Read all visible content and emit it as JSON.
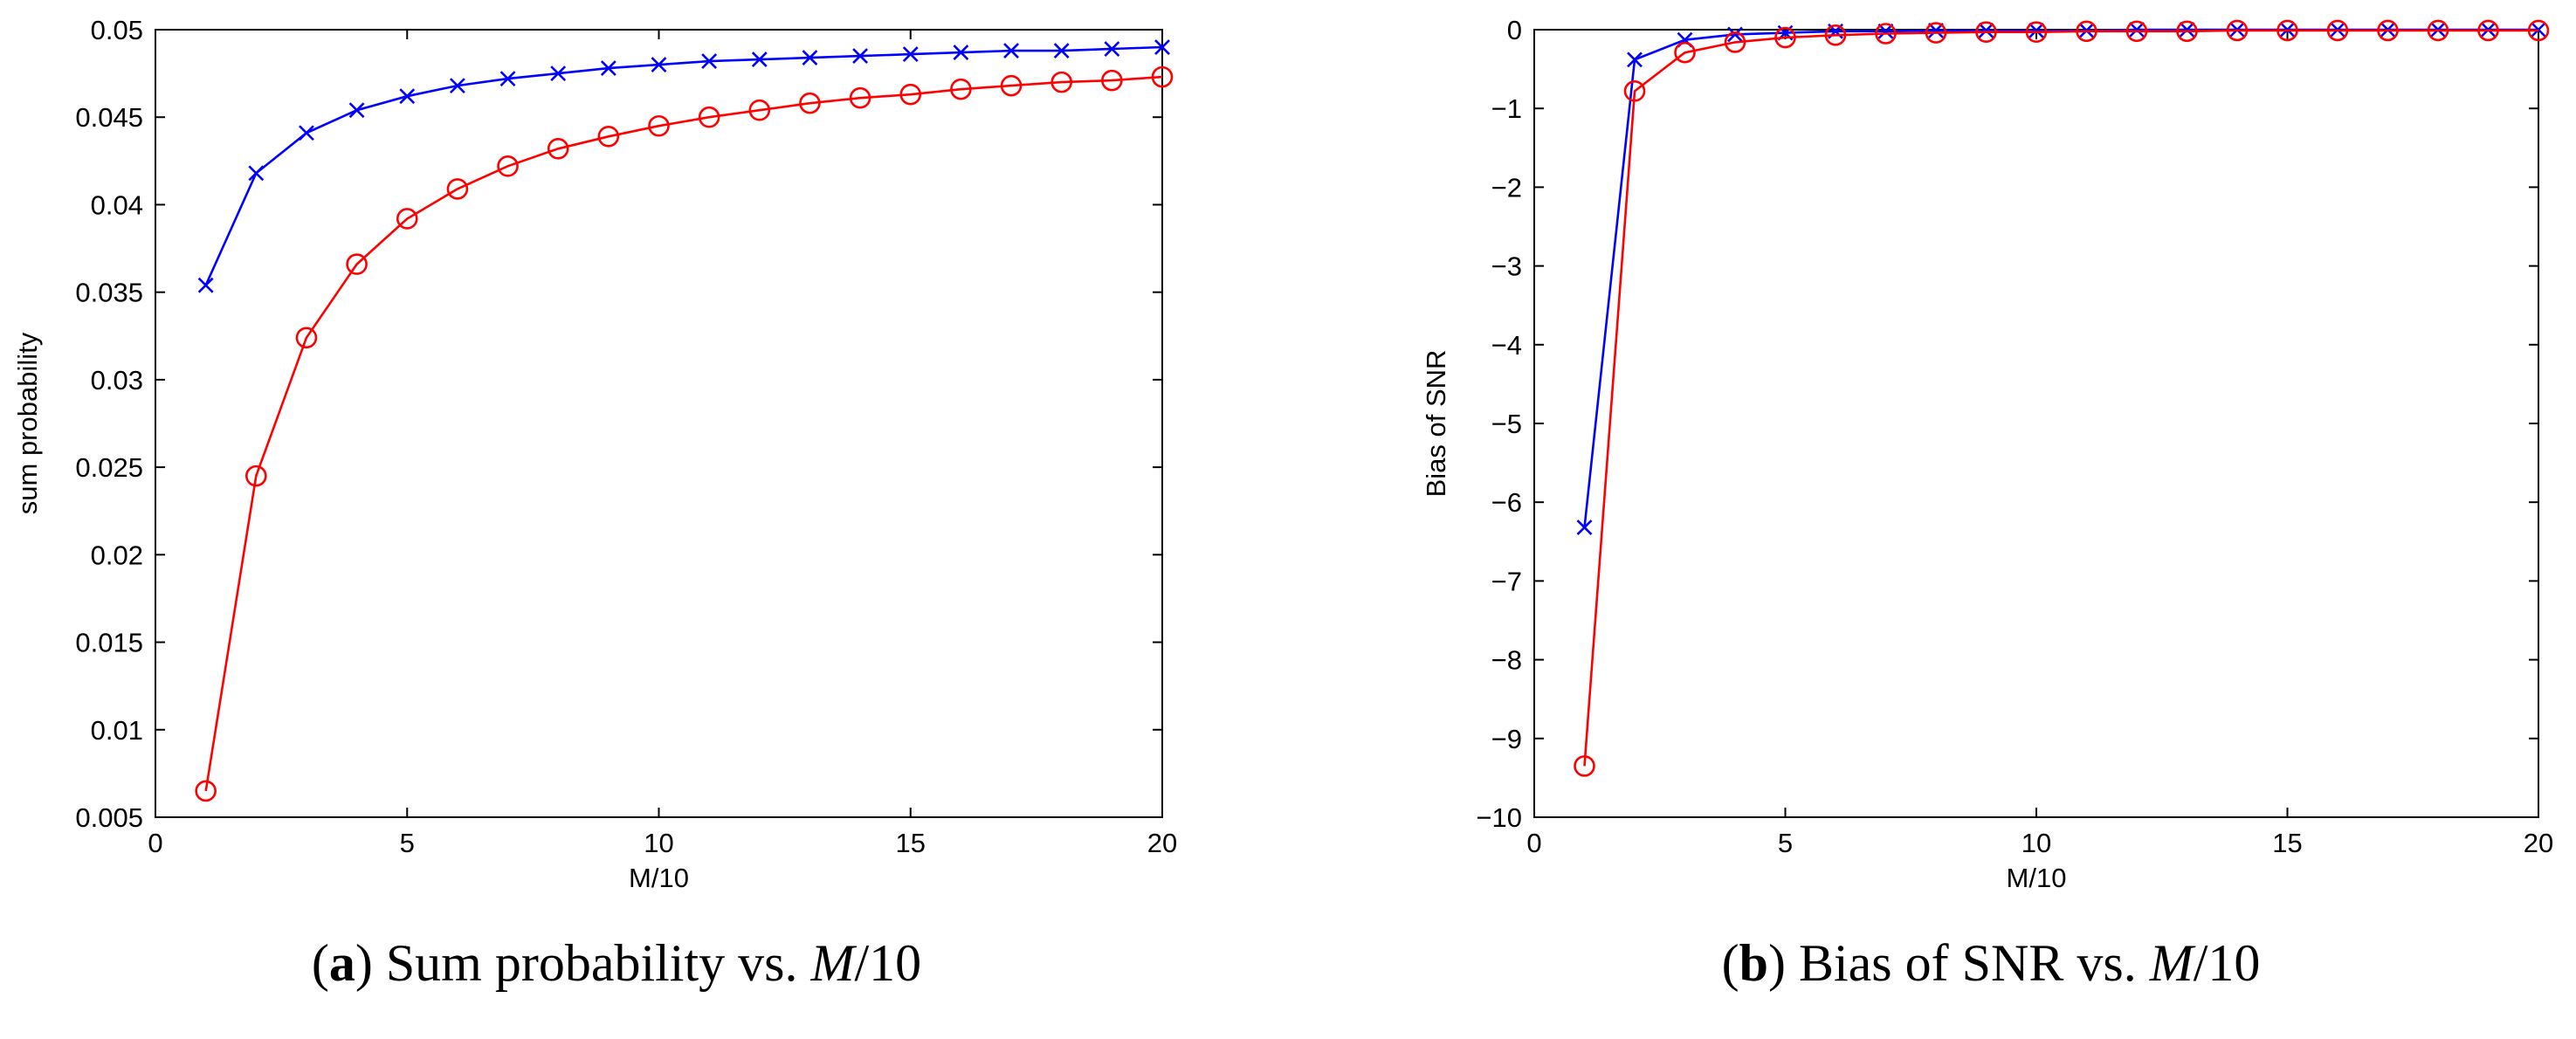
{
  "chart_data": [
    {
      "type": "line",
      "panel_label": "a",
      "caption_text": "Sum probability vs.",
      "caption_var": "M",
      "caption_suffix": "/10",
      "xlabel": "M/10",
      "ylabel": "sum probability",
      "xlim": [
        0,
        20
      ],
      "ylim": [
        0.005,
        0.05
      ],
      "xticks": [
        0,
        5,
        10,
        15,
        20
      ],
      "xtick_labels": [
        "0",
        "5",
        "10",
        "15",
        "20"
      ],
      "yticks": [
        0.005,
        0.01,
        0.015,
        0.02,
        0.025,
        0.03,
        0.035,
        0.04,
        0.045,
        0.05
      ],
      "ytick_labels": [
        "0.005",
        "0.01",
        "0.015",
        "0.02",
        "0.025",
        "0.03",
        "0.035",
        "0.04",
        "0.045",
        "0.05"
      ],
      "x": [
        1,
        2,
        3,
        4,
        5,
        6,
        7,
        8,
        9,
        10,
        11,
        12,
        13,
        14,
        15,
        16,
        17,
        18,
        19,
        20
      ],
      "series": [
        {
          "name": "blue-x",
          "color": "#0000ff",
          "marker": "x",
          "values": [
            0.0354,
            0.0418,
            0.0441,
            0.0454,
            0.0462,
            0.0468,
            0.0472,
            0.0475,
            0.0478,
            0.048,
            0.0482,
            0.0483,
            0.0484,
            0.0485,
            0.0486,
            0.0487,
            0.0488,
            0.0488,
            0.0489,
            0.049
          ]
        },
        {
          "name": "red-o",
          "color": "#ff0000",
          "marker": "o",
          "values": [
            0.0065,
            0.0245,
            0.0324,
            0.0366,
            0.0392,
            0.0409,
            0.0422,
            0.0432,
            0.0439,
            0.0445,
            0.045,
            0.0454,
            0.0458,
            0.0461,
            0.0463,
            0.0466,
            0.0468,
            0.047,
            0.0471,
            0.0473
          ]
        }
      ]
    },
    {
      "type": "line",
      "panel_label": "b",
      "caption_text": "Bias of SNR vs.",
      "caption_var": "M",
      "caption_suffix": "/10",
      "xlabel": "M/10",
      "ylabel": "Bias of SNR",
      "xlim": [
        0,
        20
      ],
      "ylim": [
        -10,
        0
      ],
      "xticks": [
        0,
        5,
        10,
        15,
        20
      ],
      "xtick_labels": [
        "0",
        "5",
        "10",
        "15",
        "20"
      ],
      "yticks": [
        -10,
        -9,
        -8,
        -7,
        -6,
        -5,
        -4,
        -3,
        -2,
        -1,
        0
      ],
      "ytick_labels": [
        "−10",
        "−9",
        "−8",
        "−7",
        "−6",
        "−5",
        "−4",
        "−3",
        "−2",
        "−1",
        "0"
      ],
      "x": [
        1,
        2,
        3,
        4,
        5,
        6,
        7,
        8,
        9,
        10,
        11,
        12,
        13,
        14,
        15,
        16,
        17,
        18,
        19,
        20
      ],
      "series": [
        {
          "name": "blue-x",
          "color": "#0000ff",
          "marker": "x",
          "values": [
            -6.32,
            -0.38,
            -0.13,
            -0.06,
            -0.04,
            -0.02,
            -0.02,
            -0.01,
            -0.01,
            -0.01,
            -0.01,
            0,
            0,
            0,
            0,
            0,
            0,
            0,
            0,
            0
          ]
        },
        {
          "name": "red-o",
          "color": "#ff0000",
          "marker": "o",
          "values": [
            -9.35,
            -0.78,
            -0.29,
            -0.16,
            -0.1,
            -0.07,
            -0.05,
            -0.04,
            -0.03,
            -0.03,
            -0.02,
            -0.02,
            -0.02,
            -0.01,
            -0.01,
            -0.01,
            -0.01,
            -0.01,
            -0.01,
            -0.01
          ]
        }
      ]
    }
  ]
}
